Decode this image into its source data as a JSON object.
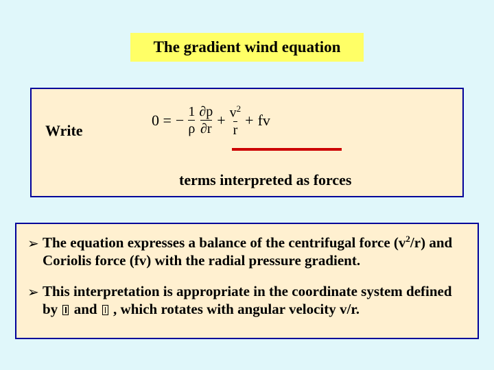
{
  "title": "The gradient wind equation",
  "middle": {
    "write": "Write",
    "eq": {
      "zeroEq": "0 =",
      "minus": "−",
      "frac1_num": "1",
      "frac1_den": "ρ",
      "frac2_num": "∂p",
      "frac2_den": "∂r",
      "plus1": "+",
      "frac3_num_base": "v",
      "frac3_num_exp": "2",
      "frac3_den": "r",
      "plus2": "+",
      "fv": "fv"
    },
    "terms": "terms interpreted as forces",
    "underline_color": "#cc0000"
  },
  "bullets": {
    "b1_a": "The equation expresses a balance of the centrifugal force (v",
    "b1_exp": "2",
    "b1_b": "/r) and Coriolis force (fv) with the radial pressure gradient.",
    "b2_a": "This interpretation is appropriate in the coordinate system defined by ",
    "b2_b": " and ",
    "b2_c": " , which rotates with angular velocity v/r."
  },
  "colors": {
    "page_bg": "#e0f7fa",
    "highlight_bg": "#ffff66",
    "panel_bg": "#fff0d0",
    "panel_border": "#000099"
  }
}
